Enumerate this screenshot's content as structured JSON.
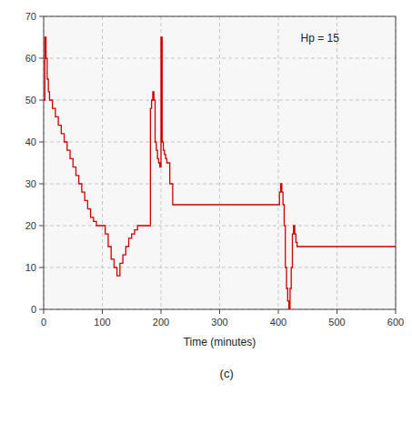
{
  "chart_data": {
    "type": "line",
    "line_style": "step",
    "xlabel": "Time (minutes)",
    "annotation": "Hp = 15",
    "subplot_label": "(c)",
    "color": "#cc0000",
    "grid": true,
    "xlim": [
      0,
      600
    ],
    "ylim": [
      0,
      70
    ],
    "xticks": [
      0,
      100,
      200,
      300,
      400,
      500,
      600
    ],
    "yticks": [
      0,
      10,
      20,
      30,
      40,
      50,
      60,
      70
    ],
    "x": [
      0,
      2,
      4,
      6,
      8,
      10,
      15,
      20,
      25,
      30,
      35,
      40,
      45,
      50,
      55,
      60,
      65,
      70,
      75,
      80,
      85,
      90,
      95,
      100,
      105,
      110,
      115,
      120,
      125,
      130,
      135,
      140,
      145,
      150,
      155,
      160,
      165,
      170,
      175,
      180,
      182,
      184,
      186,
      188,
      190,
      192,
      194,
      196,
      198,
      200,
      202,
      204,
      206,
      208,
      210,
      215,
      220,
      225,
      230,
      240,
      250,
      260,
      270,
      280,
      290,
      300,
      310,
      320,
      330,
      340,
      350,
      360,
      370,
      380,
      390,
      400,
      402,
      404,
      406,
      408,
      410,
      412,
      414,
      416,
      418,
      420,
      422,
      424,
      426,
      428,
      430,
      432,
      434,
      436,
      438,
      440,
      450,
      460,
      470,
      480,
      490,
      500,
      510,
      520,
      530,
      540,
      550,
      560,
      570,
      580,
      590,
      600
    ],
    "values": [
      50,
      65,
      60,
      55,
      52,
      50,
      48,
      46,
      44,
      42,
      40,
      38,
      36,
      34,
      32,
      30,
      28,
      26,
      24,
      22,
      21,
      20,
      20,
      20,
      18,
      15,
      12,
      10,
      8,
      11,
      13,
      15,
      17,
      18,
      19,
      20,
      20,
      20,
      20,
      20,
      48,
      50,
      52,
      50,
      40,
      38,
      36,
      35,
      34,
      65,
      40,
      38,
      37,
      36,
      35,
      30,
      25,
      25,
      25,
      25,
      25,
      25,
      25,
      25,
      25,
      25,
      25,
      25,
      25,
      25,
      25,
      25,
      25,
      25,
      25,
      25,
      28,
      30,
      28,
      25,
      20,
      10,
      5,
      2,
      0,
      5,
      10,
      18,
      20,
      18,
      16,
      15,
      15,
      15,
      15,
      15,
      15,
      15,
      15,
      15,
      15,
      15,
      15,
      15,
      15,
      15,
      15,
      15,
      15,
      15,
      15,
      15
    ]
  }
}
